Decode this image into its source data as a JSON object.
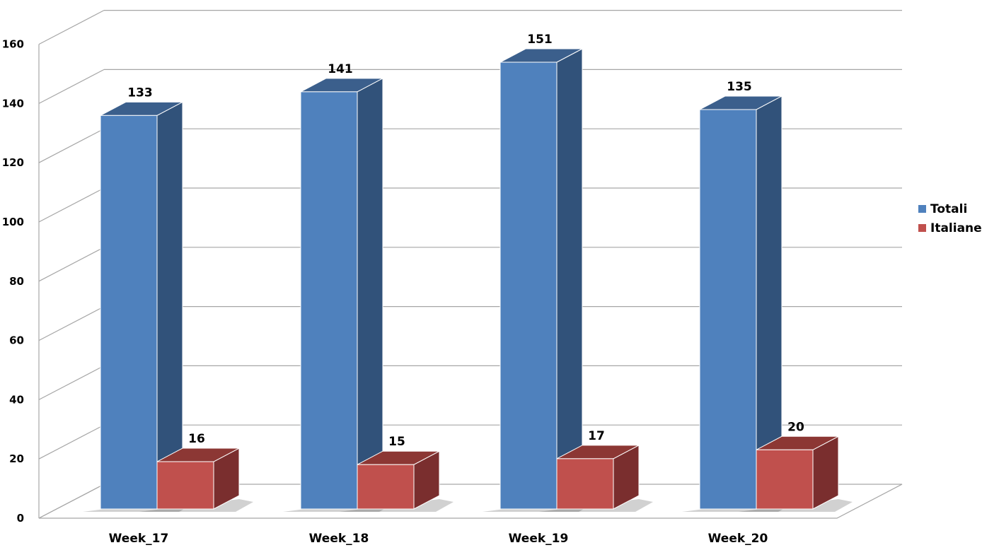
{
  "chart_data": {
    "type": "bar",
    "categories": [
      "Week_17",
      "Week_18",
      "Week_19",
      "Week_20"
    ],
    "series": [
      {
        "name": "Totali",
        "values": [
          133,
          141,
          151,
          135
        ],
        "color": "#4F81BD",
        "side_color": "#31527A",
        "top_color": "#3B5F8C"
      },
      {
        "name": "Italiane",
        "values": [
          16,
          15,
          17,
          20
        ],
        "color": "#C0504D",
        "side_color": "#7A2E2E",
        "top_color": "#8C3734"
      }
    ],
    "ylim": [
      0,
      160
    ],
    "yticks": [
      "0",
      "20",
      "40",
      "60",
      "80",
      "100",
      "120",
      "140",
      "160"
    ],
    "grid": true,
    "three_d": true,
    "legend_position": "right",
    "data_labels": [
      [
        "133",
        "16"
      ],
      [
        "141",
        "15"
      ],
      [
        "151",
        "17"
      ],
      [
        "135",
        "20"
      ]
    ]
  }
}
